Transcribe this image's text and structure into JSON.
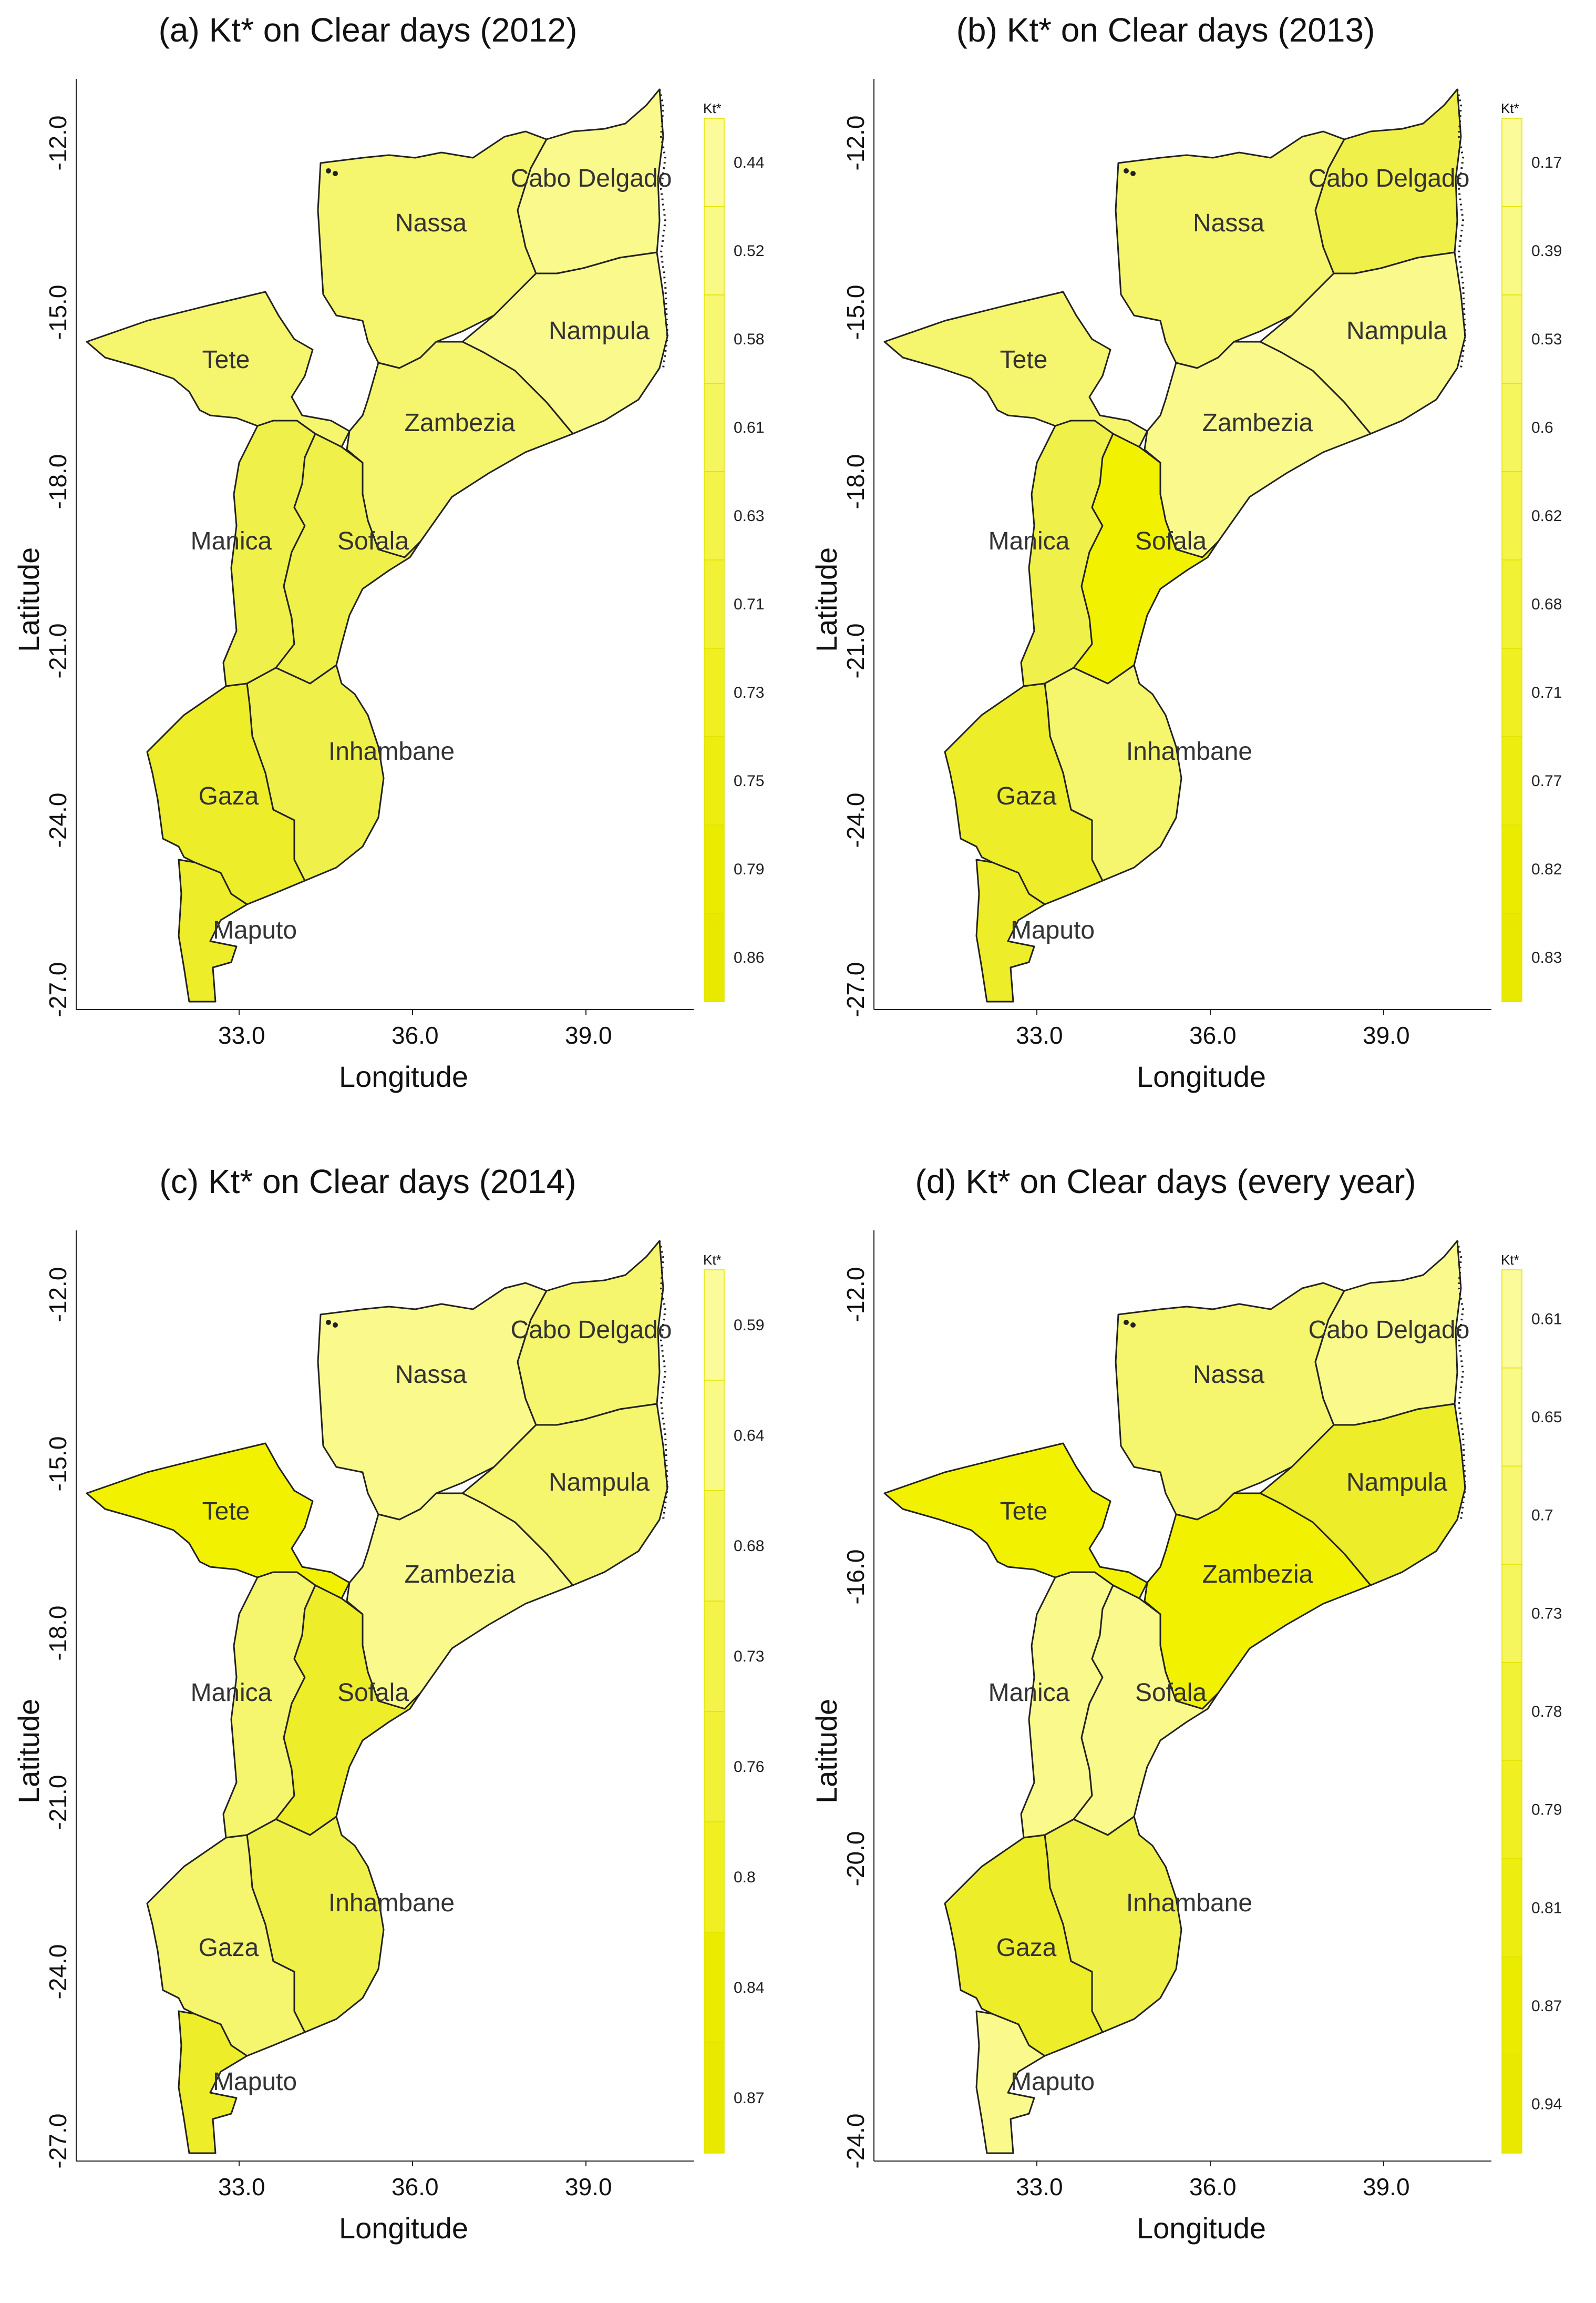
{
  "common": {
    "xlabel": "Longitude",
    "ylabel": "Latitude",
    "legend_title": "Kt*",
    "region_names": [
      "Nassa",
      "Cabo Delgado",
      "Nampula",
      "Tete",
      "Zambezia",
      "Manica",
      "Sofala",
      "Inhambane",
      "Gaza",
      "Maputo"
    ]
  },
  "colors": {
    "border": "#222222",
    "pale": "#fafa8c",
    "light": "#f5f56e",
    "mid": "#f0f04a",
    "strong": "#eded2a",
    "full": "#f2f200"
  },
  "chart_data": [
    {
      "type": "choropleth",
      "title": "(a) Kt* on Clear days (2012)",
      "xlabel": "Longitude",
      "ylabel": "Latitude",
      "x_ticks": [
        "33.0",
        "36.0",
        "39.0"
      ],
      "y_ticks": [
        "-12.0",
        "-15.0",
        "-18.0",
        "-21.0",
        "-24.0",
        "-27.0"
      ],
      "legend_title": "Kt*",
      "legend_values": [
        "0.44",
        "0.52",
        "0.58",
        "0.61",
        "0.63",
        "0.71",
        "0.73",
        "0.75",
        "0.79",
        "0.86"
      ],
      "region_fill": {
        "Nassa": "light",
        "Cabo Delgado": "pale",
        "Nampula": "pale",
        "Tete": "light",
        "Zambezia": "light",
        "Manica": "mid",
        "Sofala": "mid",
        "Inhambane": "mid",
        "Gaza": "strong",
        "Maputo": "strong"
      }
    },
    {
      "type": "choropleth",
      "title": "(b) Kt* on Clear days (2013)",
      "xlabel": "Longitude",
      "ylabel": "Latitude",
      "x_ticks": [
        "33.0",
        "36.0",
        "39.0"
      ],
      "y_ticks": [
        "-12.0",
        "-15.0",
        "-18.0",
        "-21.0",
        "-24.0",
        "-27.0"
      ],
      "legend_title": "Kt*",
      "legend_values": [
        "0.17",
        "0.39",
        "0.53",
        "0.6",
        "0.62",
        "0.68",
        "0.71",
        "0.77",
        "0.82",
        "0.83"
      ],
      "region_fill": {
        "Nassa": "light",
        "Cabo Delgado": "mid",
        "Nampula": "pale",
        "Tete": "light",
        "Zambezia": "pale",
        "Manica": "mid",
        "Sofala": "full",
        "Inhambane": "light",
        "Gaza": "strong",
        "Maputo": "strong"
      }
    },
    {
      "type": "choropleth",
      "title": "(c) Kt* on Clear days (2014)",
      "xlabel": "Longitude",
      "ylabel": "Latitude",
      "x_ticks": [
        "33.0",
        "36.0",
        "39.0"
      ],
      "y_ticks": [
        "-12.0",
        "-15.0",
        "-18.0",
        "-21.0",
        "-24.0",
        "-27.0"
      ],
      "legend_title": "Kt*",
      "legend_values": [
        "0.59",
        "0.64",
        "0.68",
        "0.73",
        "0.76",
        "0.8",
        "0.84",
        "0.87"
      ],
      "region_fill": {
        "Nassa": "pale",
        "Cabo Delgado": "light",
        "Nampula": "light",
        "Tete": "full",
        "Zambezia": "pale",
        "Manica": "light",
        "Sofala": "strong",
        "Inhambane": "mid",
        "Gaza": "light",
        "Maputo": "strong"
      }
    },
    {
      "type": "choropleth",
      "title": "(d) Kt* on Clear days (every year)",
      "xlabel": "Longitude",
      "ylabel": "Latitude",
      "x_ticks": [
        "33.0",
        "36.0",
        "39.0"
      ],
      "y_ticks": [
        "-12.0",
        "-16.0",
        "-20.0",
        "-24.0"
      ],
      "legend_title": "Kt*",
      "legend_values": [
        "0.61",
        "0.65",
        "0.7",
        "0.73",
        "0.78",
        "0.79",
        "0.81",
        "0.87",
        "0.94"
      ],
      "region_fill": {
        "Nassa": "light",
        "Cabo Delgado": "pale",
        "Nampula": "strong",
        "Tete": "full",
        "Zambezia": "full",
        "Manica": "pale",
        "Sofala": "pale",
        "Inhambane": "mid",
        "Gaza": "strong",
        "Maputo": "pale"
      }
    }
  ]
}
